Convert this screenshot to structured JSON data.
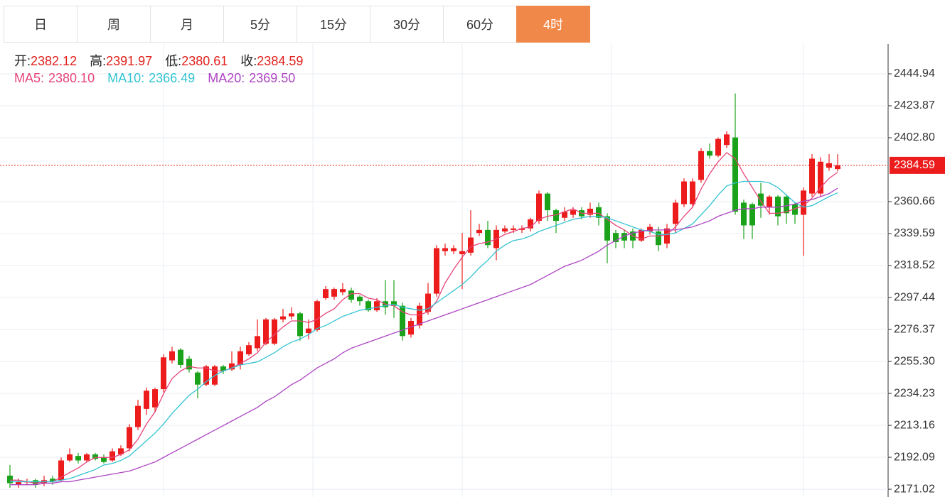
{
  "tabs": {
    "items": [
      "日",
      "周",
      "月",
      "5分",
      "15分",
      "30分",
      "60分",
      "4时"
    ],
    "active": 7
  },
  "chart_data": {
    "type": "candlestick",
    "ohlc_info": [
      {
        "name": "开:",
        "value": "2382.12"
      },
      {
        "name": "高:",
        "value": "2391.97"
      },
      {
        "name": "低:",
        "value": "2380.61"
      },
      {
        "name": "收:",
        "value": "2384.59"
      }
    ],
    "open": [
      2180,
      2174,
      2176,
      2177,
      2175,
      2178,
      2177,
      2190,
      2193,
      2190,
      2194,
      2192,
      2190,
      2194,
      2198,
      2212,
      2224,
      2225,
      2237,
      2256,
      2263,
      2257,
      2248,
      2240,
      2240,
      2252,
      2250,
      2253,
      2260,
      2264,
      2267,
      2267,
      2283,
      2285,
      2287,
      2274,
      2276,
      2297,
      2298,
      2301,
      2302,
      2298,
      2295,
      2289,
      2295,
      2295,
      2292,
      2273,
      2279,
      2288,
      2300,
      2328,
      2328,
      2326,
      2327,
      2340,
      2342,
      2330,
      2341,
      2342,
      2342,
      2343,
      2348,
      2366,
      2355,
      2350,
      2352,
      2355,
      2352,
      2357,
      2351,
      2340,
      2340,
      2341,
      2335,
      2341,
      2341,
      2333,
      2346,
      2359,
      2359,
      2375,
      2394,
      2391,
      2398,
      2403,
      2360,
      2359,
      2366,
      2357,
      2364,
      2364,
      2359,
      2352,
      2366,
      2366,
      2383,
      2382.12
    ],
    "high": [
      2187,
      2178,
      2178,
      2178,
      2180,
      2180,
      2192,
      2198,
      2195,
      2195,
      2195,
      2194,
      2198,
      2200,
      2214,
      2230,
      2238,
      2238,
      2260,
      2265,
      2264,
      2259,
      2249,
      2253,
      2253,
      2253,
      2262,
      2265,
      2268,
      2283,
      2284,
      2284,
      2290,
      2291,
      2288,
      2283,
      2296,
      2305,
      2304,
      2307,
      2304,
      2299,
      2296,
      2297,
      2309,
      2309,
      2294,
      2284,
      2294,
      2307,
      2332,
      2333,
      2332,
      2340,
      2355,
      2346,
      2348,
      2345,
      2345,
      2345,
      2345,
      2350,
      2368,
      2367,
      2356,
      2357,
      2357,
      2357,
      2360,
      2360,
      2353,
      2342,
      2342,
      2343,
      2343,
      2346,
      2344,
      2346,
      2362,
      2376,
      2376,
      2396,
      2399,
      2403,
      2407,
      2432,
      2362,
      2360,
      2373,
      2365,
      2365,
      2365,
      2360,
      2370,
      2392,
      2390,
      2392,
      2391.97
    ],
    "low": [
      2172,
      2172,
      2174,
      2172,
      2173,
      2174,
      2176,
      2189,
      2188,
      2189,
      2190,
      2188,
      2189,
      2193,
      2196,
      2210,
      2220,
      2222,
      2235,
      2254,
      2251,
      2248,
      2231,
      2239,
      2239,
      2247,
      2249,
      2250,
      2259,
      2262,
      2266,
      2266,
      2281,
      2283,
      2269,
      2270,
      2275,
      2296,
      2296,
      2299,
      2294,
      2292,
      2288,
      2288,
      2286,
      2284,
      2269,
      2271,
      2277,
      2286,
      2298,
      2325,
      2326,
      2303,
      2325,
      2338,
      2330,
      2322,
      2340,
      2340,
      2340,
      2341,
      2346,
      2348,
      2340,
      2348,
      2350,
      2349,
      2350,
      2345,
      2320,
      2330,
      2330,
      2330,
      2334,
      2339,
      2328,
      2330,
      2340,
      2357,
      2357,
      2373,
      2389,
      2390,
      2396,
      2352,
      2336,
      2336,
      2350,
      2352,
      2345,
      2346,
      2346,
      2325,
      2364,
      2364,
      2381,
      2380.61
    ],
    "close": [
      2175,
      2176,
      2176,
      2174,
      2177,
      2176,
      2190,
      2194,
      2190,
      2194,
      2191,
      2189,
      2196,
      2198,
      2212,
      2226,
      2236,
      2237,
      2258,
      2262,
      2253,
      2250,
      2240,
      2252,
      2252,
      2249,
      2254,
      2262,
      2266,
      2272,
      2283,
      2283,
      2285,
      2287,
      2272,
      2277,
      2295,
      2303,
      2303,
      2303,
      2296,
      2295,
      2289,
      2295,
      2291,
      2292,
      2272,
      2282,
      2292,
      2300,
      2330,
      2330,
      2330,
      2328,
      2337,
      2342,
      2332,
      2342,
      2343,
      2343,
      2343,
      2349,
      2366,
      2355,
      2348,
      2354,
      2355,
      2351,
      2356,
      2350,
      2335,
      2334,
      2335,
      2335,
      2342,
      2344,
      2332,
      2343,
      2360,
      2374,
      2374,
      2394,
      2391,
      2402,
      2405,
      2354,
      2345,
      2345,
      2358,
      2364,
      2351,
      2353,
      2352,
      2368,
      2389,
      2387,
      2386,
      2384.59
    ],
    "up_color": "#ec1c1c",
    "down_color": "#1aa31a",
    "series": [
      {
        "name": "MA5:",
        "color": "#e6457a",
        "last_label": "2380.10",
        "values": [
          2177,
          2177,
          2176,
          2175,
          2176,
          2176,
          2179,
          2182,
          2185,
          2189,
          2192,
          2192,
          2192,
          2194,
          2197,
          2204,
          2214,
          2222,
          2234,
          2244,
          2249,
          2252,
          2251,
          2251,
          2249,
          2249,
          2251,
          2254,
          2257,
          2261,
          2268,
          2273,
          2278,
          2282,
          2282,
          2281,
          2283,
          2287,
          2290,
          2296,
          2300,
          2300,
          2297,
          2296,
          2293,
          2292,
          2288,
          2286,
          2286,
          2288,
          2295,
          2307,
          2316,
          2324,
          2331,
          2333,
          2334,
          2336,
          2339,
          2341,
          2343,
          2344,
          2349,
          2351,
          2352,
          2354,
          2356,
          2353,
          2353,
          2353,
          2349,
          2345,
          2342,
          2338,
          2336,
          2338,
          2338,
          2339,
          2344,
          2351,
          2357,
          2369,
          2379,
          2387,
          2393,
          2389,
          2379,
          2370,
          2361,
          2353,
          2353,
          2354,
          2356,
          2358,
          2363,
          2370,
          2376,
          2380.1
        ]
      },
      {
        "name": "MA10:",
        "color": "#33c3d3",
        "last_label": "2366.49",
        "values": [
          2176,
          2176,
          2176,
          2176,
          2176,
          2176,
          2177,
          2178,
          2180,
          2182,
          2184,
          2187,
          2188,
          2190,
          2193,
          2198,
          2203,
          2208,
          2214,
          2221,
          2227,
          2233,
          2237,
          2242,
          2246,
          2249,
          2251,
          2253,
          2254,
          2255,
          2258,
          2261,
          2265,
          2268,
          2270,
          2273,
          2277,
          2279,
          2282,
          2285,
          2287,
          2289,
          2290,
          2291,
          2292,
          2293,
          2291,
          2290,
          2289,
          2290,
          2294,
          2298,
          2302,
          2306,
          2311,
          2317,
          2322,
          2328,
          2332,
          2335,
          2336,
          2338,
          2341,
          2343,
          2345,
          2347,
          2349,
          2350,
          2351,
          2351,
          2350,
          2348,
          2346,
          2344,
          2342,
          2341,
          2339,
          2339,
          2340,
          2343,
          2346,
          2352,
          2358,
          2365,
          2371,
          2373,
          2374,
          2374,
          2374,
          2373,
          2370,
          2365,
          2360,
          2357,
          2358,
          2361,
          2364,
          2366.49
        ]
      },
      {
        "name": "MA20:",
        "color": "#ad44c2",
        "last_label": "2369.50",
        "values": [
          2174,
          2174,
          2174,
          2174,
          2175,
          2175,
          2176,
          2176,
          2177,
          2178,
          2179,
          2180,
          2181,
          2182,
          2183,
          2185,
          2187,
          2189,
          2192,
          2195,
          2198,
          2201,
          2204,
          2207,
          2210,
          2213,
          2216,
          2219,
          2222,
          2225,
          2229,
          2232,
          2236,
          2240,
          2243,
          2247,
          2251,
          2254,
          2257,
          2261,
          2264,
          2266,
          2268,
          2270,
          2272,
          2274,
          2276,
          2278,
          2280,
          2282,
          2284,
          2286,
          2288,
          2290,
          2292,
          2294,
          2296,
          2298,
          2300,
          2302,
          2304,
          2306,
          2309,
          2312,
          2315,
          2318,
          2320,
          2322,
          2325,
          2328,
          2332,
          2335,
          2338,
          2340,
          2341,
          2342,
          2342,
          2342,
          2342,
          2343,
          2344,
          2346,
          2348,
          2351,
          2353,
          2355,
          2356,
          2356,
          2357,
          2357,
          2357,
          2358,
          2359,
          2361,
          2362,
          2364,
          2366,
          2369.5
        ]
      }
    ],
    "ylim": [
      2165.9,
      2464.6
    ],
    "yticks": [
      2171.02,
      2192.09,
      2213.16,
      2234.23,
      {
        "value": 2255.3,
        "label": "2255.30"
      },
      2276.37,
      2297.44,
      2318.52,
      2339.59,
      2360.66,
      {
        "value": 2402.8,
        "label": "2402.80"
      },
      2423.87,
      2444.94
    ],
    "grid": true
  }
}
